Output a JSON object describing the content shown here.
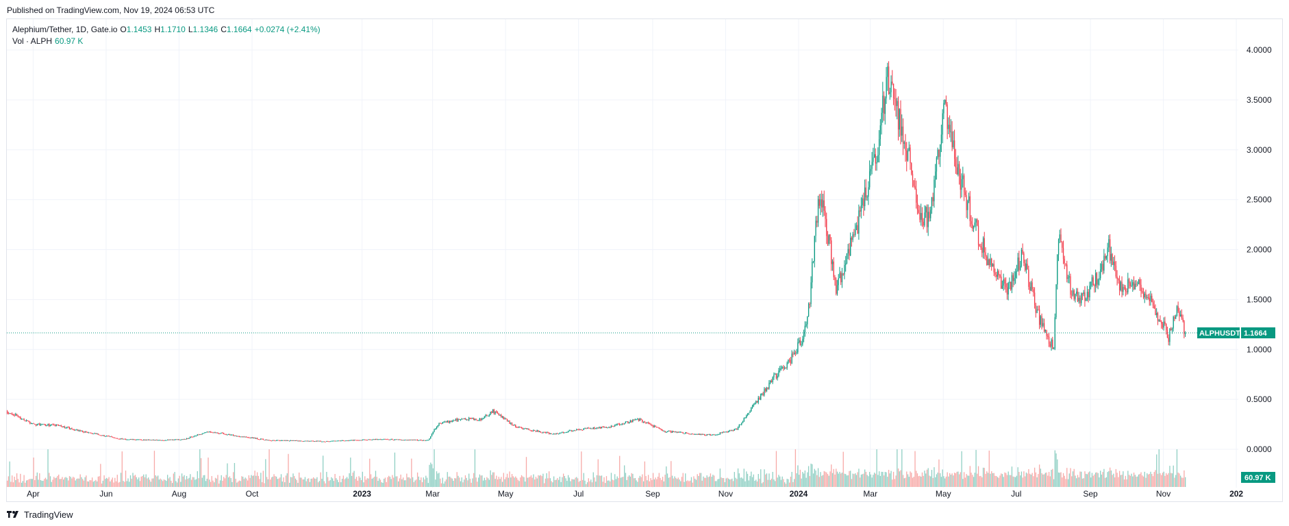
{
  "published": "Published on TradingView.com, Nov 19, 2024 06:53 UTC",
  "legend": {
    "symbol": "Alephium/Tether, 1D, Gate.io",
    "o_label": "O",
    "o": "1.1453",
    "h_label": "H",
    "h": "1.1710",
    "l_label": "L",
    "l": "1.1346",
    "c_label": "C",
    "c": "1.1664",
    "change": "+0.0274 (+2.41%)",
    "vol_label": "Vol · ALPH",
    "vol": "60.97 K"
  },
  "price_label": {
    "symbol": "ALPHUSDT",
    "value": "1.1664"
  },
  "volume_label": "60.97 K",
  "footer": {
    "brand": "TradingView",
    "logo": "tradingview-logo-icon"
  },
  "colors": {
    "up": "#089981",
    "down": "#f23645",
    "up_vol": "#8fcfc3",
    "down_vol": "#f7a9a7",
    "grid": "#f0f3fa"
  },
  "chart_data": {
    "type": "candlestick",
    "interval": "1D",
    "exchange": "Gate.io",
    "x_ticks": [
      "Apr",
      "Jun",
      "Aug",
      "Oct",
      "2023",
      "Mar",
      "May",
      "Jul",
      "Sep",
      "Nov",
      "2024",
      "Mar",
      "May",
      "Jul",
      "Sep",
      "Nov",
      "202"
    ],
    "y_ticks": [
      "4.0000",
      "3.5000",
      "3.0000",
      "2.5000",
      "2.0000",
      "1.5000",
      "1.0000",
      "0.5000",
      "0.0000"
    ],
    "ylim": [
      0,
      4
    ],
    "last_price": 1.1664,
    "close_series": [
      {
        "date": "2022-03-10",
        "close": 0.38
      },
      {
        "date": "2022-04-01",
        "close": 0.25
      },
      {
        "date": "2022-04-20",
        "close": 0.24
      },
      {
        "date": "2022-05-15",
        "close": 0.17
      },
      {
        "date": "2022-06-15",
        "close": 0.1
      },
      {
        "date": "2022-07-15",
        "close": 0.09
      },
      {
        "date": "2022-08-05",
        "close": 0.1
      },
      {
        "date": "2022-08-25",
        "close": 0.18
      },
      {
        "date": "2022-09-15",
        "close": 0.14
      },
      {
        "date": "2022-10-15",
        "close": 0.09
      },
      {
        "date": "2022-12-01",
        "close": 0.08
      },
      {
        "date": "2023-01-15",
        "close": 0.1
      },
      {
        "date": "2023-02-25",
        "close": 0.09
      },
      {
        "date": "2023-03-05",
        "close": 0.25
      },
      {
        "date": "2023-03-20",
        "close": 0.3
      },
      {
        "date": "2023-04-10",
        "close": 0.3
      },
      {
        "date": "2023-04-20",
        "close": 0.38
      },
      {
        "date": "2023-05-10",
        "close": 0.22
      },
      {
        "date": "2023-06-10",
        "close": 0.15
      },
      {
        "date": "2023-07-01",
        "close": 0.2
      },
      {
        "date": "2023-07-25",
        "close": 0.22
      },
      {
        "date": "2023-08-20",
        "close": 0.3
      },
      {
        "date": "2023-09-10",
        "close": 0.18
      },
      {
        "date": "2023-10-20",
        "close": 0.14
      },
      {
        "date": "2023-11-10",
        "close": 0.2
      },
      {
        "date": "2023-11-25",
        "close": 0.45
      },
      {
        "date": "2023-12-10",
        "close": 0.7
      },
      {
        "date": "2023-12-25",
        "close": 0.9
      },
      {
        "date": "2024-01-05",
        "close": 1.15
      },
      {
        "date": "2024-01-10",
        "close": 1.5
      },
      {
        "date": "2024-01-15",
        "close": 2.3
      },
      {
        "date": "2024-01-20",
        "close": 2.55
      },
      {
        "date": "2024-02-01",
        "close": 1.6
      },
      {
        "date": "2024-02-10",
        "close": 1.9
      },
      {
        "date": "2024-02-25",
        "close": 2.5
      },
      {
        "date": "2024-03-05",
        "close": 2.9
      },
      {
        "date": "2024-03-15",
        "close": 3.7
      },
      {
        "date": "2024-03-20",
        "close": 3.45
      },
      {
        "date": "2024-03-30",
        "close": 3.1
      },
      {
        "date": "2024-04-10",
        "close": 2.4
      },
      {
        "date": "2024-04-20",
        "close": 2.3
      },
      {
        "date": "2024-05-01",
        "close": 3.5
      },
      {
        "date": "2024-05-10",
        "close": 2.9
      },
      {
        "date": "2024-05-25",
        "close": 2.3
      },
      {
        "date": "2024-06-10",
        "close": 1.8
      },
      {
        "date": "2024-06-25",
        "close": 1.6
      },
      {
        "date": "2024-07-05",
        "close": 1.95
      },
      {
        "date": "2024-07-20",
        "close": 1.3
      },
      {
        "date": "2024-08-01",
        "close": 1.0
      },
      {
        "date": "2024-08-05",
        "close": 2.15
      },
      {
        "date": "2024-08-15",
        "close": 1.6
      },
      {
        "date": "2024-08-25",
        "close": 1.5
      },
      {
        "date": "2024-09-10",
        "close": 1.8
      },
      {
        "date": "2024-09-15",
        "close": 2.05
      },
      {
        "date": "2024-09-25",
        "close": 1.6
      },
      {
        "date": "2024-10-10",
        "close": 1.7
      },
      {
        "date": "2024-10-25",
        "close": 1.4
      },
      {
        "date": "2024-11-05",
        "close": 1.12
      },
      {
        "date": "2024-11-12",
        "close": 1.38
      },
      {
        "date": "2024-11-19",
        "close": 1.1664
      }
    ]
  }
}
